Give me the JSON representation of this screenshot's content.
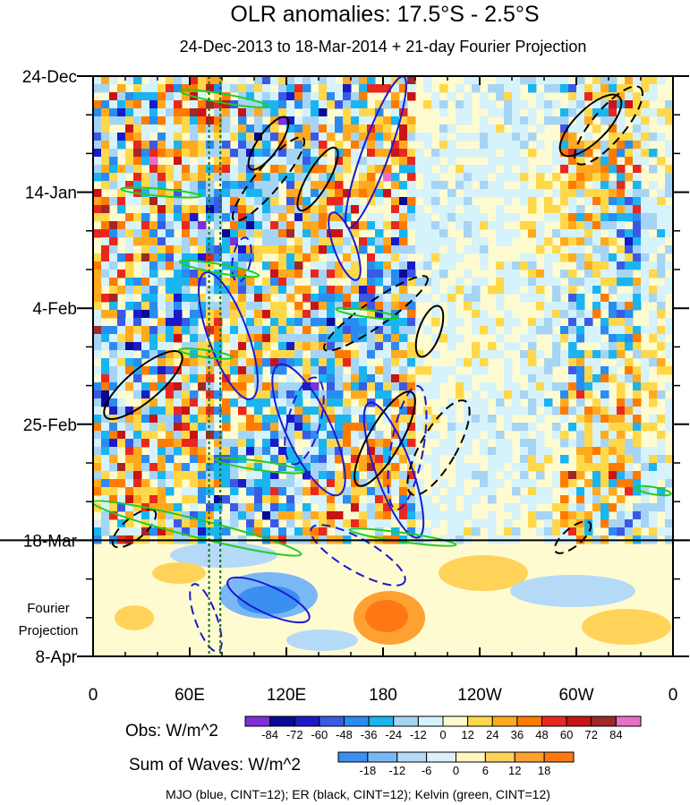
{
  "chart_data": {
    "type": "heatmap",
    "title": "OLR anomalies: 17.5°S - 2.5°S",
    "subtitle": "24-Dec-2013 to 18-Mar-2014 + 21-day Fourier Projection",
    "x_ticks": [
      "0",
      "60E",
      "120E",
      "180",
      "120W",
      "60W",
      "0"
    ],
    "x_tick_values": [
      0,
      60,
      120,
      180,
      240,
      300,
      360
    ],
    "y_ticks": [
      "24-Dec",
      "14-Jan",
      "4-Feb",
      "25-Feb",
      "18-Mar",
      "8-Apr"
    ],
    "y_tick_values": [
      0,
      21,
      42,
      63,
      84,
      105
    ],
    "xlim": [
      0,
      360
    ],
    "ylim_days": [
      0,
      105
    ],
    "projection_label_line1": "Fourier",
    "projection_label_line2": "Projection",
    "projection_start_day": 84,
    "reference_longitudes": [
      72,
      79
    ],
    "obs_colorbar": {
      "label": "Obs: W/m^2",
      "levels": [
        "-84",
        "-72",
        "-60",
        "-48",
        "-36",
        "-24",
        "-12",
        "0",
        "12",
        "24",
        "36",
        "48",
        "60",
        "72",
        "84"
      ],
      "colors": [
        "#7d2fd9",
        "#0a0a96",
        "#1a1ac8",
        "#3a5ae6",
        "#2a8cf0",
        "#1ab4f0",
        "#a6d4f5",
        "#d6f2fa",
        "#fffbd0",
        "#ffd84a",
        "#ffaa1e",
        "#ff7b00",
        "#e8281e",
        "#c81414",
        "#a02828",
        "#e86ec8"
      ]
    },
    "waves_colorbar": {
      "label": "Sum of Waves: W/m^2",
      "levels": [
        "-18",
        "-12",
        "-6",
        "0",
        "6",
        "12",
        "18"
      ],
      "colors": [
        "#3a8ff0",
        "#7ab8f5",
        "#b4daf8",
        "#dcf0fa",
        "#fff7c2",
        "#ffd25a",
        "#ffa032",
        "#ff7814"
      ]
    },
    "overlays": [
      {
        "name": "MJO",
        "color": "blue",
        "cint": 12
      },
      {
        "name": "ER",
        "color": "black",
        "cint": 12
      },
      {
        "name": "Kelvin",
        "color": "green",
        "cint": 12
      }
    ],
    "footer": "MJO (blue, CINT=12); ER (black, CINT=12); Kelvin (green, CINT=12)"
  }
}
